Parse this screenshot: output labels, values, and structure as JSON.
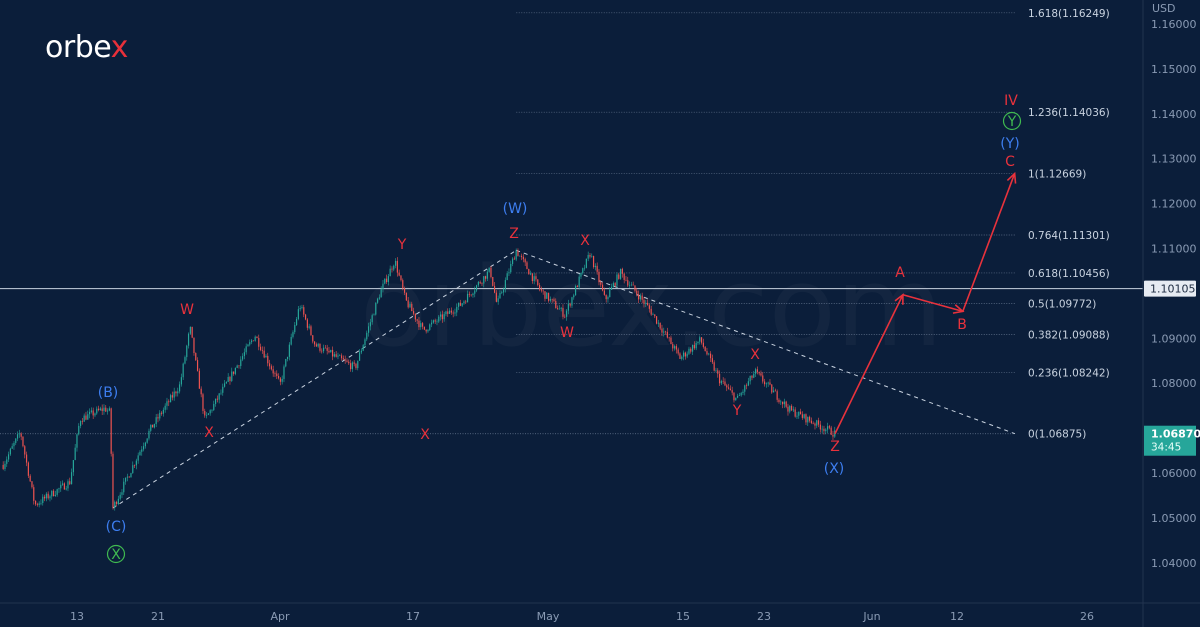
{
  "logo": {
    "text_main": "orbe",
    "text_accent": "x"
  },
  "colors": {
    "background": "#0b1e3a",
    "up": "#26a69a",
    "down": "#ef5350",
    "wave_red": "#e8323c",
    "wave_blue": "#3d7ef0",
    "wave_green": "#3fb950",
    "price_badge": "#26a69a"
  },
  "chart_data": {
    "type": "candlestick",
    "currency": "USD",
    "ylim": [
      1.035,
      1.165
    ],
    "y_ticks": [
      "1.16000",
      "1.15000",
      "1.14000",
      "1.13000",
      "1.12000",
      "1.11000",
      "1.09000",
      "1.08000",
      "1.06000",
      "1.05000",
      "1.04000"
    ],
    "x_ticks": [
      {
        "label": "13",
        "date": "Mar 13"
      },
      {
        "label": "21",
        "date": "Mar 21"
      },
      {
        "label": "Apr",
        "date": "Apr 03"
      },
      {
        "label": "17",
        "date": "Apr 17"
      },
      {
        "label": "May",
        "date": "May 01"
      },
      {
        "label": "15",
        "date": "May 15"
      },
      {
        "label": "23",
        "date": "May 23"
      },
      {
        "label": "Jun",
        "date": "Jun 01"
      },
      {
        "label": "12",
        "date": "Jun 12"
      },
      {
        "label": "26",
        "date": "Jun 26"
      }
    ],
    "price_path": [
      [
        "Mar 05 17:00",
        1.0618
      ],
      [
        "Mar 07 10:00",
        1.0691
      ],
      [
        "Mar 08 20:00",
        1.0529
      ],
      [
        "Mar 12 07:00",
        1.058
      ],
      [
        "Mar 13 07:00",
        1.072
      ],
      [
        "Mar 15 18:00",
        1.0744
      ],
      [
        "Mar 16 06:00",
        1.0735
      ],
      [
        "Mar 16 13:00",
        1.0522
      ],
      [
        "Mar 20 05:00",
        1.0696
      ],
      [
        "Mar 23 08:00",
        1.0796
      ],
      [
        "Mar 24 10:00",
        1.0923
      ],
      [
        "Mar 26 00:00",
        1.0718
      ],
      [
        "Mar 31 08:00",
        1.0907
      ],
      [
        "Apr 03 00:00",
        1.0796
      ],
      [
        "Apr 05 02:00",
        1.0974
      ],
      [
        "Apr 06 17:00",
        1.0885
      ],
      [
        "Apr 10 22:00",
        1.0834
      ],
      [
        "Apr 13 12:00",
        1.1
      ],
      [
        "Apr 15 02:00",
        1.1074
      ],
      [
        "Apr 16 05:00",
        1.0985
      ],
      [
        "Apr 18 01:00",
        1.0918
      ],
      [
        "Apr 21 21:00",
        1.0974
      ],
      [
        "Apr 25 00:00",
        1.1052
      ],
      [
        "Apr 25 17:00",
        1.0974
      ],
      [
        "Apr 27 17:00",
        1.1096
      ],
      [
        "Apr 30 05:00",
        1.1007
      ],
      [
        "May 02 18:00",
        1.0952
      ],
      [
        "May 05 09:00",
        1.109
      ],
      [
        "May 06 22:00",
        1.0985
      ],
      [
        "May 08 12:00",
        1.1047
      ],
      [
        "May 11 14:00",
        1.0963
      ],
      [
        "May 14 17:00",
        1.0856
      ],
      [
        "May 16 17:00",
        1.0896
      ],
      [
        "May 18 15:00",
        1.0807
      ],
      [
        "May 20 08:00",
        1.0763
      ],
      [
        "May 22 03:00",
        1.0825
      ],
      [
        "May 25 04:00",
        1.074
      ],
      [
        "May 28 22:00",
        1.06875
      ]
    ],
    "current_price": {
      "value": "1.06870",
      "countdown": "34:45"
    },
    "horizontal_line": {
      "value": "1.10105"
    },
    "fibonacci": [
      {
        "label": "1.618(1.16249)",
        "value": 1.16249
      },
      {
        "label": "1.236(1.14036)",
        "value": 1.14036
      },
      {
        "label": "1(1.12669)",
        "value": 1.12669
      },
      {
        "label": "0.764(1.11301)",
        "value": 1.11301
      },
      {
        "label": "0.618(1.10456)",
        "value": 1.10456
      },
      {
        "label": "0.5(1.09772)",
        "value": 1.09772
      },
      {
        "label": "0.382(1.09088)",
        "value": 1.09088
      },
      {
        "label": "0.236(1.08242)",
        "value": 1.08242
      },
      {
        "label": "0(1.06875)",
        "value": 1.06875
      }
    ],
    "projection": [
      [
        "May 28 22:00",
        1.06875
      ],
      [
        "Jun 05 00:00",
        1.0997
      ],
      [
        "Jun 12 15:00",
        1.096
      ],
      [
        "Jun 18 05:00",
        1.12669
      ]
    ],
    "wave_labels": [
      {
        "text": "(B)",
        "color": "blue"
      },
      {
        "text": "(C)",
        "color": "blue"
      },
      {
        "text": "X",
        "color": "green",
        "circled": true
      },
      {
        "text": "W",
        "color": "red"
      },
      {
        "text": "X",
        "color": "red"
      },
      {
        "text": "Y",
        "color": "red"
      },
      {
        "text": "X",
        "color": "red"
      },
      {
        "text": "(W)",
        "color": "blue"
      },
      {
        "text": "Z",
        "color": "red"
      },
      {
        "text": "X",
        "color": "red"
      },
      {
        "text": "W",
        "color": "red"
      },
      {
        "text": "X",
        "color": "red"
      },
      {
        "text": "Y",
        "color": "red"
      },
      {
        "text": "Z",
        "color": "red"
      },
      {
        "text": "(X)",
        "color": "blue"
      },
      {
        "text": "A",
        "color": "red"
      },
      {
        "text": "B",
        "color": "red"
      },
      {
        "text": "IV",
        "color": "red"
      },
      {
        "text": "Y",
        "color": "green",
        "circled": true
      },
      {
        "text": "(Y)",
        "color": "blue"
      },
      {
        "text": "C",
        "color": "red"
      }
    ]
  }
}
